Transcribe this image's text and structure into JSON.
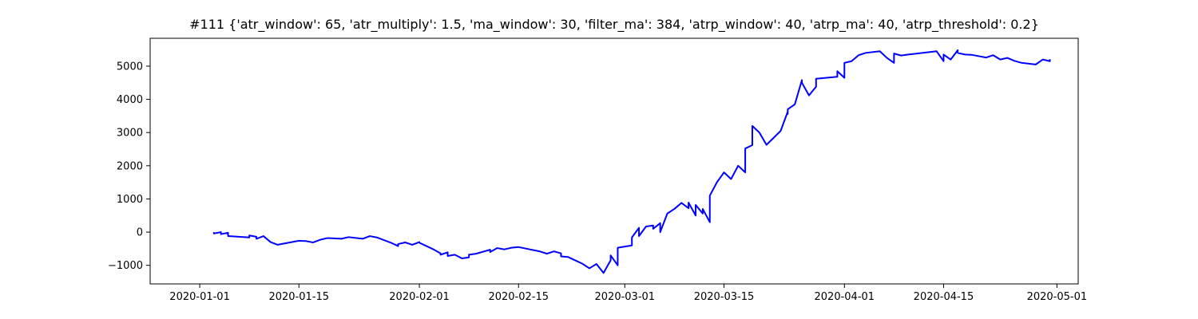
{
  "chart_data": {
    "type": "line",
    "title": "#111 {'atr_window': 65, 'atr_multiply': 1.5, 'ma_window': 30, 'filter_ma': 384, 'atrp_window': 40, 'atrp_ma': 40, 'atrp_threshold': 0.2}",
    "xlabel": "",
    "ylabel": "",
    "x_type": "date",
    "xlim": [
      "2019-12-25",
      "2020-05-04"
    ],
    "ylim": [
      -1560,
      5840
    ],
    "x_ticks": [
      "2020-01-01",
      "2020-01-15",
      "2020-02-01",
      "2020-02-15",
      "2020-03-01",
      "2020-03-15",
      "2020-04-01",
      "2020-04-15",
      "2020-05-01"
    ],
    "y_ticks": [
      -1000,
      0,
      1000,
      2000,
      3000,
      4000,
      5000
    ],
    "grid": false,
    "legend": false,
    "series": [
      {
        "color": "#0000ff",
        "x": [
          "2020-01-03",
          "2020-01-03",
          "2020-01-04",
          "2020-01-04",
          "2020-01-05",
          "2020-01-05",
          "2020-01-08",
          "2020-01-08",
          "2020-01-09",
          "2020-01-09",
          "2020-01-10",
          "2020-01-11",
          "2020-01-12",
          "2020-01-15",
          "2020-01-16",
          "2020-01-17",
          "2020-01-18",
          "2020-01-19",
          "2020-01-21",
          "2020-01-22",
          "2020-01-24",
          "2020-01-25",
          "2020-01-26",
          "2020-01-27",
          "2020-01-28",
          "2020-01-29",
          "2020-01-29",
          "2020-01-30",
          "2020-01-31",
          "2020-02-01",
          "2020-02-01",
          "2020-02-03",
          "2020-02-04",
          "2020-02-04",
          "2020-02-05",
          "2020-02-05",
          "2020-02-06",
          "2020-02-07",
          "2020-02-08",
          "2020-02-08",
          "2020-02-09",
          "2020-02-11",
          "2020-02-11",
          "2020-02-12",
          "2020-02-13",
          "2020-02-14",
          "2020-02-15",
          "2020-02-18",
          "2020-02-19",
          "2020-02-20",
          "2020-02-21",
          "2020-02-21",
          "2020-02-22",
          "2020-02-23",
          "2020-02-24",
          "2020-02-25",
          "2020-02-26",
          "2020-02-27",
          "2020-02-28",
          "2020-02-28",
          "2020-02-29",
          "2020-02-29",
          "2020-03-02",
          "2020-03-02",
          "2020-03-03",
          "2020-03-03",
          "2020-03-03",
          "2020-03-04",
          "2020-03-05",
          "2020-03-05",
          "2020-03-06",
          "2020-03-06",
          "2020-03-07",
          "2020-03-08",
          "2020-03-09",
          "2020-03-10",
          "2020-03-10",
          "2020-03-11",
          "2020-03-11",
          "2020-03-12",
          "2020-03-12",
          "2020-03-13",
          "2020-03-13",
          "2020-03-14",
          "2020-03-15",
          "2020-03-16",
          "2020-03-17",
          "2020-03-18",
          "2020-03-18",
          "2020-03-19",
          "2020-03-19",
          "2020-03-20",
          "2020-03-21",
          "2020-03-23",
          "2020-03-24",
          "2020-03-24",
          "2020-03-24",
          "2020-03-25",
          "2020-03-26",
          "2020-03-26",
          "2020-03-27",
          "2020-03-28",
          "2020-03-28",
          "2020-03-31",
          "2020-03-31",
          "2020-04-01",
          "2020-04-01",
          "2020-04-02",
          "2020-04-03",
          "2020-04-04",
          "2020-04-06",
          "2020-04-07",
          "2020-04-08",
          "2020-04-08",
          "2020-04-09",
          "2020-04-10",
          "2020-04-14",
          "2020-04-15",
          "2020-04-15",
          "2020-04-16",
          "2020-04-17",
          "2020-04-17",
          "2020-04-18",
          "2020-04-19",
          "2020-04-21",
          "2020-04-22",
          "2020-04-23",
          "2020-04-24",
          "2020-04-25",
          "2020-04-26",
          "2020-04-28",
          "2020-04-29",
          "2020-04-30",
          "2020-04-30"
        ],
        "y": [
          0,
          -40,
          0,
          -60,
          -20,
          -120,
          -160,
          -100,
          -140,
          -200,
          -120,
          -300,
          -380,
          -260,
          -270,
          -310,
          -230,
          -180,
          -200,
          -150,
          -200,
          -120,
          -160,
          -240,
          -320,
          -420,
          -360,
          -310,
          -380,
          -300,
          -320,
          -520,
          -640,
          -680,
          -610,
          -720,
          -680,
          -790,
          -760,
          -680,
          -650,
          -530,
          -600,
          -480,
          -520,
          -470,
          -450,
          -580,
          -650,
          -580,
          -640,
          -730,
          -750,
          -850,
          -950,
          -1090,
          -960,
          -1230,
          -850,
          -700,
          -1000,
          -470,
          -400,
          -160,
          130,
          -110,
          -120,
          170,
          200,
          100,
          270,
          0,
          560,
          700,
          880,
          720,
          890,
          500,
          820,
          560,
          700,
          300,
          1100,
          1500,
          1800,
          1600,
          2000,
          1800,
          2520,
          2620,
          3200,
          3000,
          2630,
          3050,
          3630,
          3560,
          3700,
          3850,
          4580,
          4500,
          4120,
          4380,
          4620,
          4680,
          4850,
          4650,
          5100,
          5150,
          5330,
          5400,
          5450,
          5250,
          5100,
          5380,
          5320,
          5350,
          5450,
          5150,
          5350,
          5200,
          5480,
          5400,
          5350,
          5340,
          5260,
          5330,
          5200,
          5250,
          5160,
          5100,
          5050,
          5200,
          5150,
          5210
        ]
      }
    ]
  }
}
